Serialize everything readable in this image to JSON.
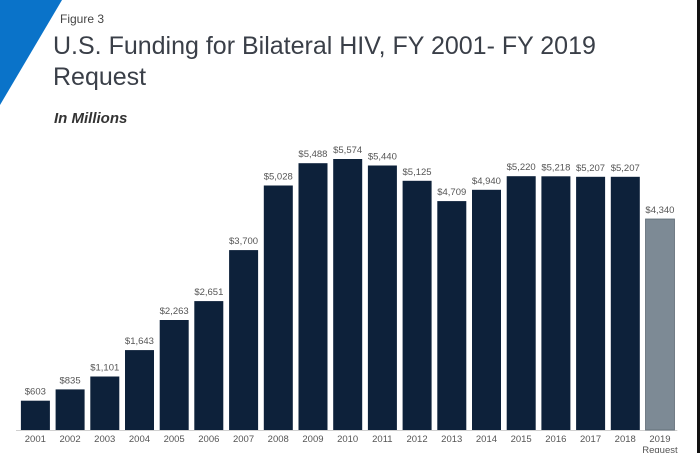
{
  "figure_label": "Figure 3",
  "title_line1": "U.S. Funding for Bilateral  HIV, FY 2001- FY 2019",
  "title_line2": "Request",
  "subtitle": "In Millions",
  "colors": {
    "bar": "#0d213a",
    "request_bar": "#7d8a95",
    "accent": "#0a73c9",
    "label": "#555555"
  },
  "chart_data": {
    "type": "bar",
    "title": "U.S. Funding for Bilateral HIV, FY 2001- FY 2019 Request",
    "subtitle": "In Millions",
    "xlabel": "",
    "ylabel": "",
    "ylim": [
      0,
      5800
    ],
    "grid": false,
    "legend": "none",
    "categories": [
      "2001",
      "2002",
      "2003",
      "2004",
      "2005",
      "2006",
      "2007",
      "2008",
      "2009",
      "2010",
      "2011",
      "2012",
      "2013",
      "2014",
      "2015",
      "2016",
      "2017",
      "2018",
      "2019\nRequest"
    ],
    "values": [
      603,
      835,
      1101,
      1643,
      2263,
      2651,
      3700,
      5028,
      5488,
      5574,
      5440,
      5125,
      4709,
      4940,
      5220,
      5218,
      5207,
      5207,
      4340
    ],
    "data_labels": [
      "$603",
      "$835",
      "$1,101",
      "$1,643",
      "$2,263",
      "$2,651",
      "$3,700",
      "$5,028",
      "$5,488",
      "$5,574",
      "$5,440",
      "$5,125",
      "$4,709",
      "$4,940",
      "$5,220",
      "$5,218",
      "$5,207",
      "$5,207",
      "$4,340"
    ],
    "highlight": [
      "2019\nRequest"
    ]
  }
}
